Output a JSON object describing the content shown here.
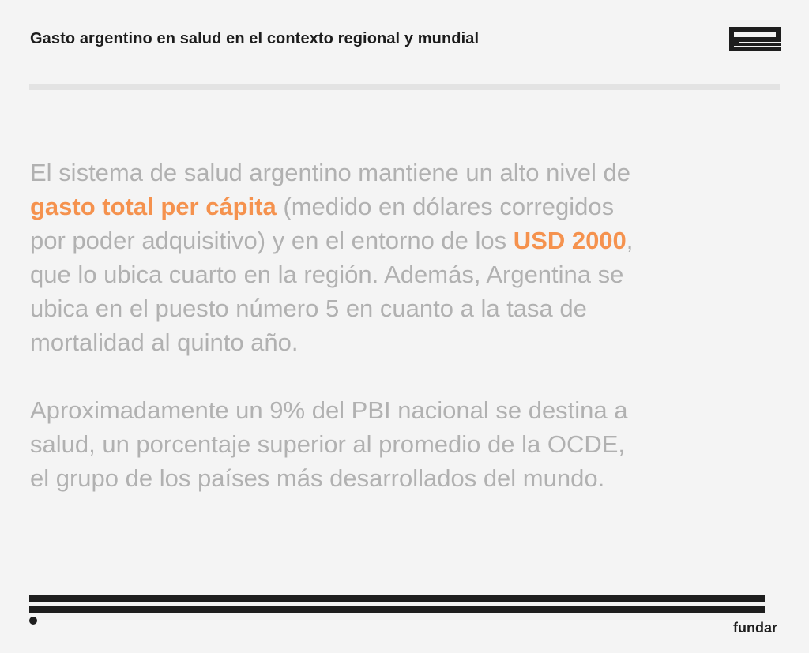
{
  "header": {
    "title": "Gasto argentino en salud en el contexto regional y mundial",
    "logo_icon": "fundar-logo-icon"
  },
  "body": {
    "paragraph1": [
      [
        {
          "t": "El sistema de salud argentino mantiene un alto nivel de"
        }
      ],
      [
        {
          "t": "gasto total per cápita",
          "hl": true
        },
        {
          "t": " (medido en dólares corregidos"
        }
      ],
      [
        {
          "t": "por poder adquisitivo) y en el entorno de los "
        },
        {
          "t": "USD 2000",
          "hl": true
        },
        {
          "t": ","
        }
      ],
      [
        {
          "t": "que lo ubica cuarto en la región. Además, Argentina se"
        }
      ],
      [
        {
          "t": "ubica en el puesto número 5 en cuanto a la tasa de"
        }
      ],
      [
        {
          "t": "mortalidad al quinto año."
        }
      ]
    ],
    "paragraph2": [
      [
        {
          "t": "Aproximadamente un 9% del PBI nacional se destina a"
        }
      ],
      [
        {
          "t": "salud, un porcentaje superior al promedio de la OCDE,"
        }
      ],
      [
        {
          "t": "el grupo de los países más desarrollados del mundo."
        }
      ]
    ]
  },
  "footer": {
    "brand": "fundar"
  },
  "colors": {
    "highlight": "#f5924e",
    "body_text": "#b1b1b1",
    "dark": "#1e1e1e"
  }
}
